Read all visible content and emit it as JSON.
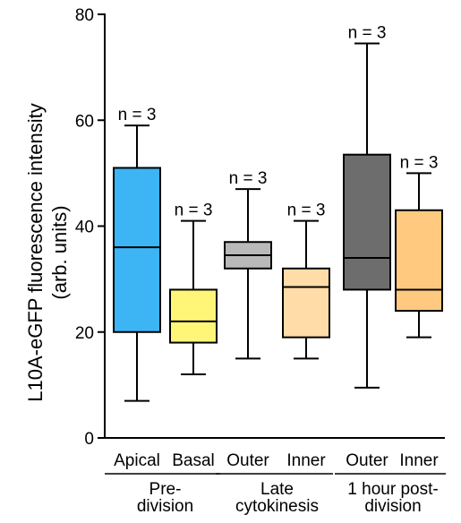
{
  "chart_data": {
    "type": "box",
    "title": "",
    "ylabel_lines": [
      "L10A-eGFP fluorescence intensity",
      "(arb. units)"
    ],
    "ylim": [
      0,
      80
    ],
    "yticks": [
      0,
      20,
      40,
      60,
      80
    ],
    "categories": [
      "Apical",
      "Basal",
      "Outer",
      "Inner",
      "Outer",
      "Inner"
    ],
    "groups": [
      {
        "lines": [
          "Pre-",
          "division"
        ],
        "members": [
          0,
          1
        ]
      },
      {
        "lines": [
          "Late",
          "cytokinesis"
        ],
        "members": [
          2,
          3
        ]
      },
      {
        "lines": [
          "1 hour post-",
          "division"
        ],
        "members": [
          4,
          5
        ]
      }
    ],
    "boxes": [
      {
        "min": 7,
        "q1": 20,
        "median": 36,
        "q3": 51,
        "max": 59,
        "n_label": "n = 3",
        "color": "#3db5f5"
      },
      {
        "min": 12,
        "q1": 18,
        "median": 22,
        "q3": 28,
        "max": 41,
        "n_label": "n = 3",
        "color": "#fff577"
      },
      {
        "min": 15,
        "q1": 32,
        "median": 34.5,
        "q3": 37,
        "max": 47,
        "n_label": "n = 3",
        "color": "#b9b9b9"
      },
      {
        "min": 15,
        "q1": 19,
        "median": 28.5,
        "q3": 32,
        "max": 41,
        "n_label": "n = 3",
        "color": "#ffdca8"
      },
      {
        "min": 9.5,
        "q1": 28,
        "median": 34,
        "q3": 53.5,
        "max": 74.5,
        "n_label": "n = 3",
        "color": "#6d6d6d"
      },
      {
        "min": 19,
        "q1": 24,
        "median": 28,
        "q3": 43,
        "max": 50,
        "n_label": "n = 3",
        "color": "#ffc97f"
      }
    ]
  }
}
